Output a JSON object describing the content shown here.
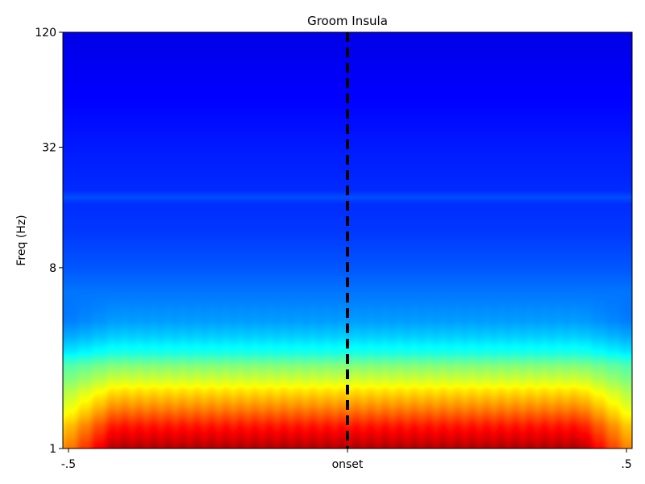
{
  "chart_data": {
    "type": "heatmap",
    "title": "Groom Insula",
    "xlabel": "",
    "ylabel": "Freq (Hz)",
    "x_ticks": [
      {
        "value": -0.5,
        "label": "-.5"
      },
      {
        "value": 0,
        "label": "onset"
      },
      {
        "value": 0.5,
        "label": ".5"
      }
    ],
    "y_ticks": [
      {
        "value": 1,
        "label": "1"
      },
      {
        "value": 8,
        "label": "8"
      },
      {
        "value": 32,
        "label": "32"
      },
      {
        "value": 120,
        "label": "120"
      }
    ],
    "xlim": [
      -0.51,
      0.51
    ],
    "ylim": [
      1,
      120
    ],
    "y_scale": "log",
    "colormap": "jet",
    "color_range": [
      0,
      1
    ],
    "event_marker": {
      "x": 0,
      "label": "onset",
      "style": "dashed",
      "color": "#000000"
    },
    "freq_profile": {
      "freq_hz": [
        1,
        1.3,
        1.6,
        1.9,
        2.2,
        2.6,
        3.0,
        3.6,
        4.3,
        5.5,
        8,
        12,
        16,
        20,
        32,
        50,
        80,
        120
      ],
      "normalized_power": [
        0.95,
        0.85,
        0.74,
        0.66,
        0.58,
        0.5,
        0.4,
        0.33,
        0.28,
        0.25,
        0.21,
        0.18,
        0.17,
        0.165,
        0.15,
        0.13,
        0.115,
        0.1
      ]
    },
    "grid": false
  }
}
